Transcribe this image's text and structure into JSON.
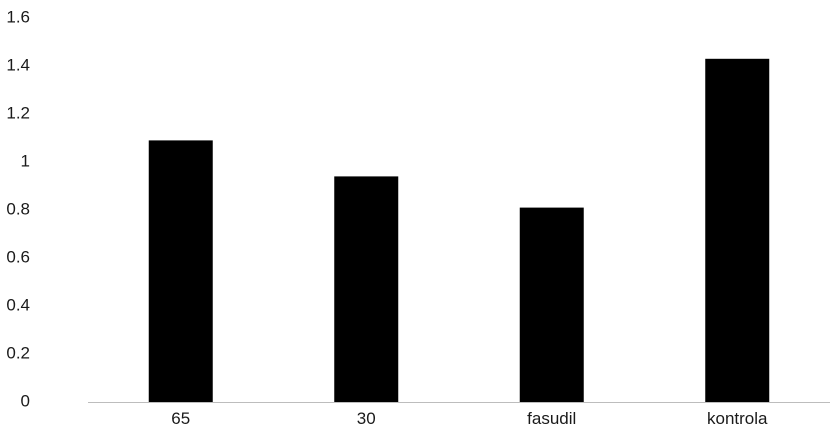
{
  "chart_data": {
    "type": "bar",
    "categories": [
      "65",
      "30",
      "fasudil",
      "kontrola"
    ],
    "values": [
      1.09,
      0.94,
      0.81,
      1.43
    ],
    "ylim": [
      0,
      1.6
    ],
    "yticks": [
      "0",
      "0.2",
      "0.4",
      "0.6",
      "0.8",
      "1",
      "1.2",
      "1.4",
      "1.6"
    ],
    "grid": false,
    "legend": "none",
    "colors": {
      "bar": "#000000",
      "axis": "#bdbdbd",
      "text": "#1a1a1a"
    }
  }
}
